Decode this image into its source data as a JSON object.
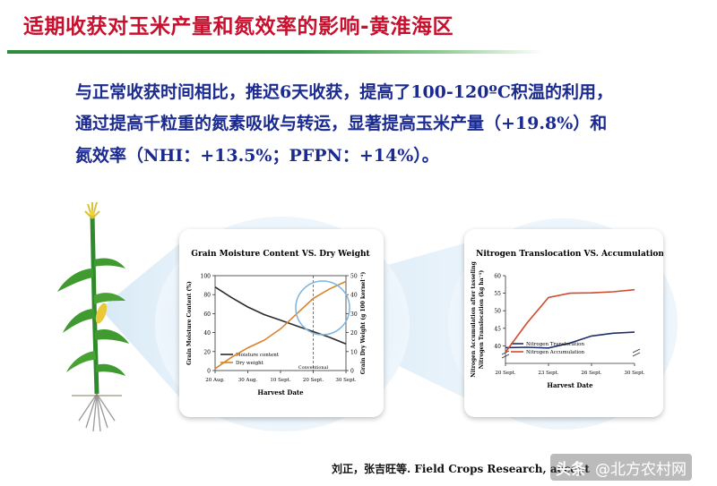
{
  "slide": {
    "title": "适期收获对玉米产量和氮效率的影响-黄淮海区",
    "lines": [
      "与正常收获时间相比，推迟6天收获，提高了100-120ºC积温的利用，",
      "通过提高千粒重的氮素吸收与转运，显著提高玉米产量（+19.8%）和",
      "氮效率（NHI：+13.5%；PFPN：+14%）。"
    ],
    "citation": "刘正，张吉旺等. Field Crops Research, accept",
    "watermark": {
      "brand": "头条",
      "handle": "@北方农村网"
    },
    "colors": {
      "title": "#c8102e",
      "text": "#1b2a8f",
      "rule": "#2e8b3e"
    }
  },
  "chart_data": [
    {
      "type": "line",
      "title": "Grain Moisture Content VS. Dry Weight",
      "xlabel": "Harvest Date",
      "ylabel": "Grain Moisture Content (%)",
      "y2label": "Grain Dry Weight (g 100 kernel⁻¹)",
      "categories": [
        "20 Aug.",
        "30 Aug.",
        "10 Sept.",
        "20 Sept.",
        "30 Sept."
      ],
      "ylim": [
        0,
        100
      ],
      "yticks": [
        0,
        20,
        40,
        60,
        80,
        100
      ],
      "y2lim": [
        0,
        50
      ],
      "y2ticks": [
        0,
        10,
        20,
        30,
        40,
        50
      ],
      "annotation": "Conventional",
      "annotation_x": 3,
      "series": [
        {
          "name": "Moisture content",
          "axis": "left",
          "color": "#2b2b2b",
          "x": [
            0,
            0.5,
            1,
            1.5,
            2,
            2.5,
            3,
            3.5,
            4
          ],
          "values": [
            88,
            77,
            67,
            59,
            53,
            47,
            41,
            35,
            28
          ]
        },
        {
          "name": "Dry weight",
          "axis": "right",
          "color": "#d9822b",
          "x": [
            0,
            0.5,
            1,
            1.5,
            2,
            2.5,
            3,
            3.5,
            4
          ],
          "values": [
            1,
            7,
            12,
            16,
            22,
            30,
            38,
            43,
            47
          ]
        }
      ]
    },
    {
      "type": "line",
      "title": "Nitrogen Translocation VS. Accumulation",
      "xlabel": "Harvest Date",
      "ylabel": "Nitrogen Accumulation after tasseling",
      "y2label": "Nitrogen Translocation (kg ha⁻¹)",
      "categories": [
        "20 Sept.",
        "23 Sept.",
        "26 Sept.",
        "30 Sept."
      ],
      "ylim": [
        35,
        60
      ],
      "yticks": [
        40,
        45,
        50,
        55,
        60
      ],
      "series": [
        {
          "name": "Nitrogen Translocation",
          "color": "#1f2f6b",
          "x": [
            0,
            0.5,
            1,
            1.5,
            2,
            2.5,
            3
          ],
          "values": [
            39.5,
            39.6,
            39.4,
            40.8,
            42.8,
            43.6,
            43.9
          ]
        },
        {
          "name": "Nitrogen Accumulation",
          "color": "#d04a2e",
          "x": [
            0,
            0.5,
            1,
            1.5,
            2,
            2.5,
            3
          ],
          "values": [
            38.2,
            46.5,
            53.8,
            55.0,
            55.1,
            55.4,
            56.0
          ]
        }
      ]
    }
  ]
}
